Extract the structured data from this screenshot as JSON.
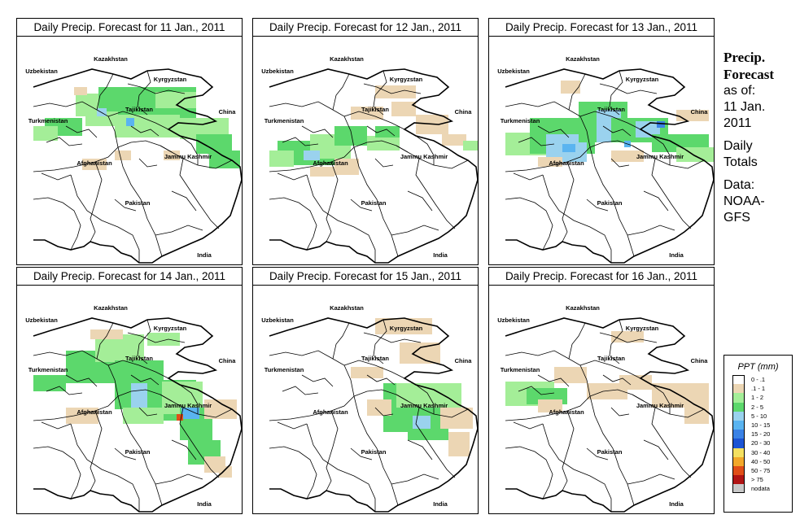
{
  "panels": [
    {
      "title": "Daily Precip. Forecast for  11 Jan., 2011"
    },
    {
      "title": "Daily Precip. Forecast for  12 Jan., 2011"
    },
    {
      "title": "Daily Precip. Forecast for  13 Jan., 2011"
    },
    {
      "title": "Daily Precip. Forecast for  14 Jan., 2011"
    },
    {
      "title": "Daily Precip. Forecast for  15 Jan., 2011"
    },
    {
      "title": "Daily Precip. Forecast for  16 Jan., 2011"
    }
  ],
  "map_labels": [
    "Kazakhstan",
    "Uzbekistan",
    "Kyrgyzstan",
    "Tajikistan",
    "China",
    "Turkmenistan",
    "Jammu Kashmir",
    "Afghanistan",
    "Pakistan",
    "India"
  ],
  "side": {
    "title_line1": "Precip.",
    "title_line2": "Forecast",
    "asof_line1": "as of:",
    "asof_line2": "11 Jan.",
    "asof_line3": "2011",
    "daily_line1": "Daily",
    "daily_line2": "Totals",
    "data_line1": "Data:",
    "data_line2": "NOAA-",
    "data_line3": "GFS"
  },
  "legend": {
    "title": "PPT (mm)",
    "items": [
      {
        "label": "0 - .1",
        "color": "#ffffff"
      },
      {
        "label": ".1 - 1",
        "color": "#ecd6b4"
      },
      {
        "label": "1 - 2",
        "color": "#a4ee98"
      },
      {
        "label": "2 - 5",
        "color": "#5cd86c"
      },
      {
        "label": "5 - 10",
        "color": "#9ad2ee"
      },
      {
        "label": "10 - 15",
        "color": "#5ab4f0"
      },
      {
        "label": "15 - 20",
        "color": "#3a82e6"
      },
      {
        "label": "20 - 30",
        "color": "#1c54d4"
      },
      {
        "label": "30 - 40",
        "color": "#f4e060"
      },
      {
        "label": "40 - 50",
        "color": "#f2a82a"
      },
      {
        "label": "50 - 75",
        "color": "#e04e18"
      },
      {
        "label": "> 75",
        "color": "#b01414"
      },
      {
        "label": "nodata",
        "color": "#c8c8c8"
      }
    ]
  }
}
